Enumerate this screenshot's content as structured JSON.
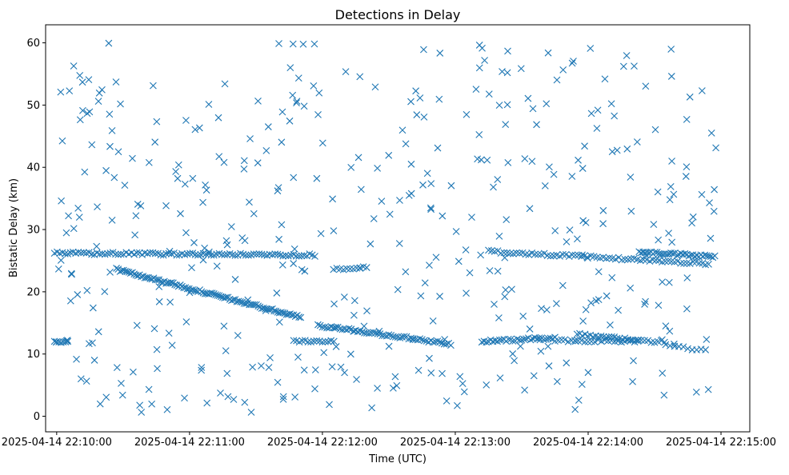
{
  "chart_data": {
    "type": "scatter",
    "title": "Detections in Delay",
    "xlabel": "Time (UTC)",
    "ylabel": "Bistatic Delay (km)",
    "x_ticks": [
      "2025-04-14 22:10:00",
      "2025-04-14 22:11:00",
      "2025-04-14 22:12:00",
      "2025-04-14 22:13:00",
      "2025-04-14 22:14:00",
      "2025-04-14 22:15:00"
    ],
    "y_ticks": [
      "0",
      "10",
      "20",
      "30",
      "40",
      "50",
      "60"
    ],
    "xlim": [
      "2025-04-14 22:09:55",
      "2025-04-14 22:15:13"
    ],
    "ylim": [
      -2.5,
      62.9
    ],
    "marker": "x",
    "color": "#1f77b4",
    "grid": false,
    "series": [
      {
        "marker": "x",
        "tracks": [
          {
            "start": "2025-04-14 22:09:59",
            "end": "2025-04-14 22:11:57",
            "delay_start": 26.2,
            "delay_end": 25.9,
            "step_s": 1.2
          },
          {
            "start": "2025-04-14 22:12:05",
            "end": "2025-04-14 22:12:20",
            "delay_start": 23.6,
            "delay_end": 23.9,
            "step_s": 1.5
          },
          {
            "start": "2025-04-14 22:10:27",
            "end": "2025-04-14 22:11:51",
            "delay_start": 23.6,
            "delay_end": 15.8,
            "step_s": 0.8
          },
          {
            "start": "2025-04-14 22:11:58",
            "end": "2025-04-14 22:12:58",
            "delay_start": 14.6,
            "delay_end": 11.6,
            "step_s": 1.0
          },
          {
            "start": "2025-04-14 22:13:12",
            "end": "2025-04-14 22:13:45",
            "delay_start": 12.0,
            "delay_end": 12.6,
            "step_s": 1.0
          },
          {
            "start": "2025-04-14 22:13:55",
            "end": "2025-04-14 22:14:23",
            "delay_start": 13.2,
            "delay_end": 12.2,
            "step_s": 1.2
          },
          {
            "start": "2025-04-14 22:13:15",
            "end": "2025-04-14 22:14:55",
            "delay_start": 26.5,
            "delay_end": 24.5,
            "step_s": 1.4
          },
          {
            "start": "2025-04-14 22:14:23",
            "end": "2025-04-14 22:14:58",
            "delay_start": 26.4,
            "delay_end": 25.6,
            "step_s": 0.9
          },
          {
            "start": "2025-04-14 22:09:59",
            "end": "2025-04-14 22:10:05",
            "delay_start": 12.0,
            "delay_end": 12.0,
            "step_s": 1.0
          },
          {
            "start": "2025-04-14 22:11:47",
            "end": "2025-04-14 22:12:06",
            "delay_start": 12.1,
            "delay_end": 12.1,
            "step_s": 1.3
          },
          {
            "start": "2025-04-14 22:13:45",
            "end": "2025-04-14 22:14:35",
            "delay_start": 12.2,
            "delay_end": 12.0,
            "step_s": 1.5
          },
          {
            "start": "2025-04-14 22:14:35",
            "end": "2025-04-14 22:14:53",
            "delay_start": 11.5,
            "delay_end": 10.5,
            "step_s": 2.0
          }
        ],
        "scattered": {
          "count": 430,
          "time_start": "2025-04-14 22:09:59",
          "time_end": "2025-04-14 22:14:58",
          "delay_min": 0.5,
          "delay_max": 60.0
        }
      }
    ]
  }
}
